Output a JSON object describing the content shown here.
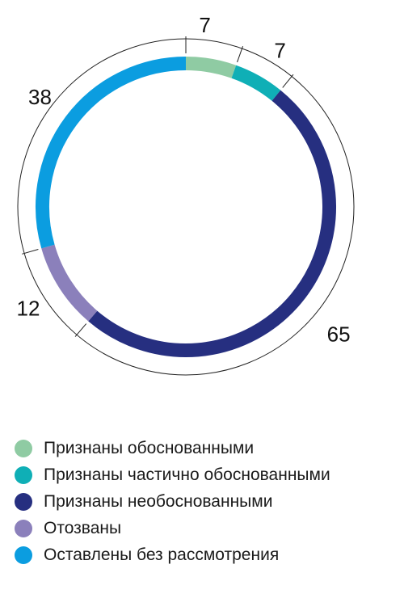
{
  "chart_data": {
    "type": "donut",
    "title": "",
    "categories": [
      "Признаны обоснованными",
      "Признаны частично обоснованными",
      "Признаны необоснованными",
      "Отозваны",
      "Оставлены без рассмотрения"
    ],
    "values": [
      7,
      7,
      65,
      12,
      38
    ],
    "value_labels": [
      "7",
      "7",
      "65",
      "12",
      "38"
    ],
    "colors": [
      "#8fcba3",
      "#0fafb6",
      "#262f80",
      "#8b80bb",
      "#0b9de0"
    ],
    "legend_position": "bottom-left",
    "start_angle": "top",
    "direction": "clockwise"
  }
}
